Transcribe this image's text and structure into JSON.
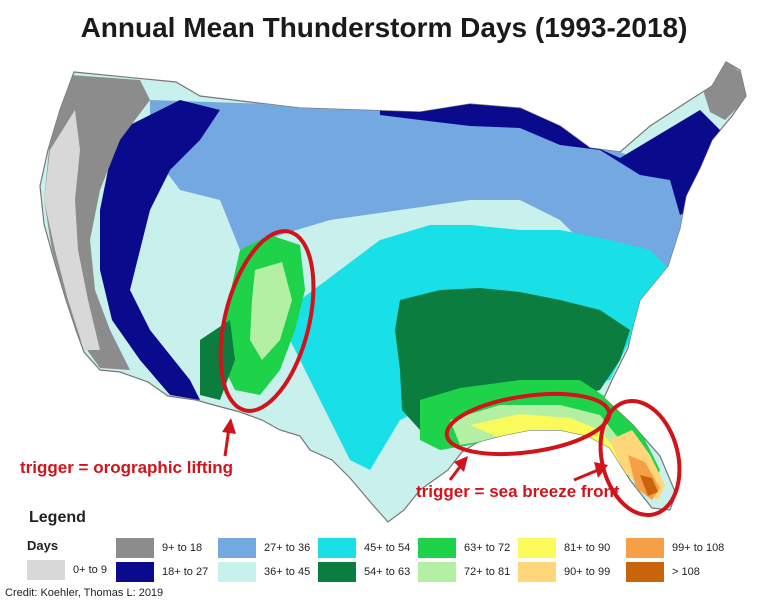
{
  "title": "Annual Mean Thunderstorm Days (1993-2018)",
  "colors": {
    "c0_9": "#d8d8d8",
    "c9_18": "#8c8c8c",
    "c18_27": "#0a0a8c",
    "c27_36": "#74a8e0",
    "c36_45": "#c8f0ec",
    "c45_54": "#19e0e6",
    "c54_63": "#0b7d3e",
    "c63_72": "#1ed24a",
    "c72_81": "#b4f0a4",
    "c81_90": "#fafa5a",
    "c90_99": "#ffd77a",
    "c99_108": "#f5a046",
    "c108": "#c8640a",
    "annotation": "#d1131b"
  },
  "annotations": {
    "orographic": "trigger = orographic lifting",
    "sea_breeze": "trigger = sea breeze front"
  },
  "legend": {
    "title": "Legend",
    "subtitle": "Days",
    "items": [
      {
        "label": "0+ to 9",
        "color": "#d8d8d8"
      },
      {
        "label": "9+ to 18",
        "color": "#8c8c8c"
      },
      {
        "label": "18+ to 27",
        "color": "#0a0a8c"
      },
      {
        "label": "27+ to 36",
        "color": "#74a8e0"
      },
      {
        "label": "36+ to 45",
        "color": "#c8f0ec"
      },
      {
        "label": "45+ to 54",
        "color": "#19e0e6"
      },
      {
        "label": "54+ to 63",
        "color": "#0b7d3e"
      },
      {
        "label": "63+ to 72",
        "color": "#1ed24a"
      },
      {
        "label": "72+ to 81",
        "color": "#b4f0a4"
      },
      {
        "label": "81+ to 90",
        "color": "#fafa5a"
      },
      {
        "label": "90+ to 99",
        "color": "#ffd77a"
      },
      {
        "label": "99+ to 108",
        "color": "#f5a046"
      },
      {
        "label": "> 108",
        "color": "#c8640a"
      }
    ]
  },
  "credit": "Credit: Koehler, Thomas L: 2019"
}
